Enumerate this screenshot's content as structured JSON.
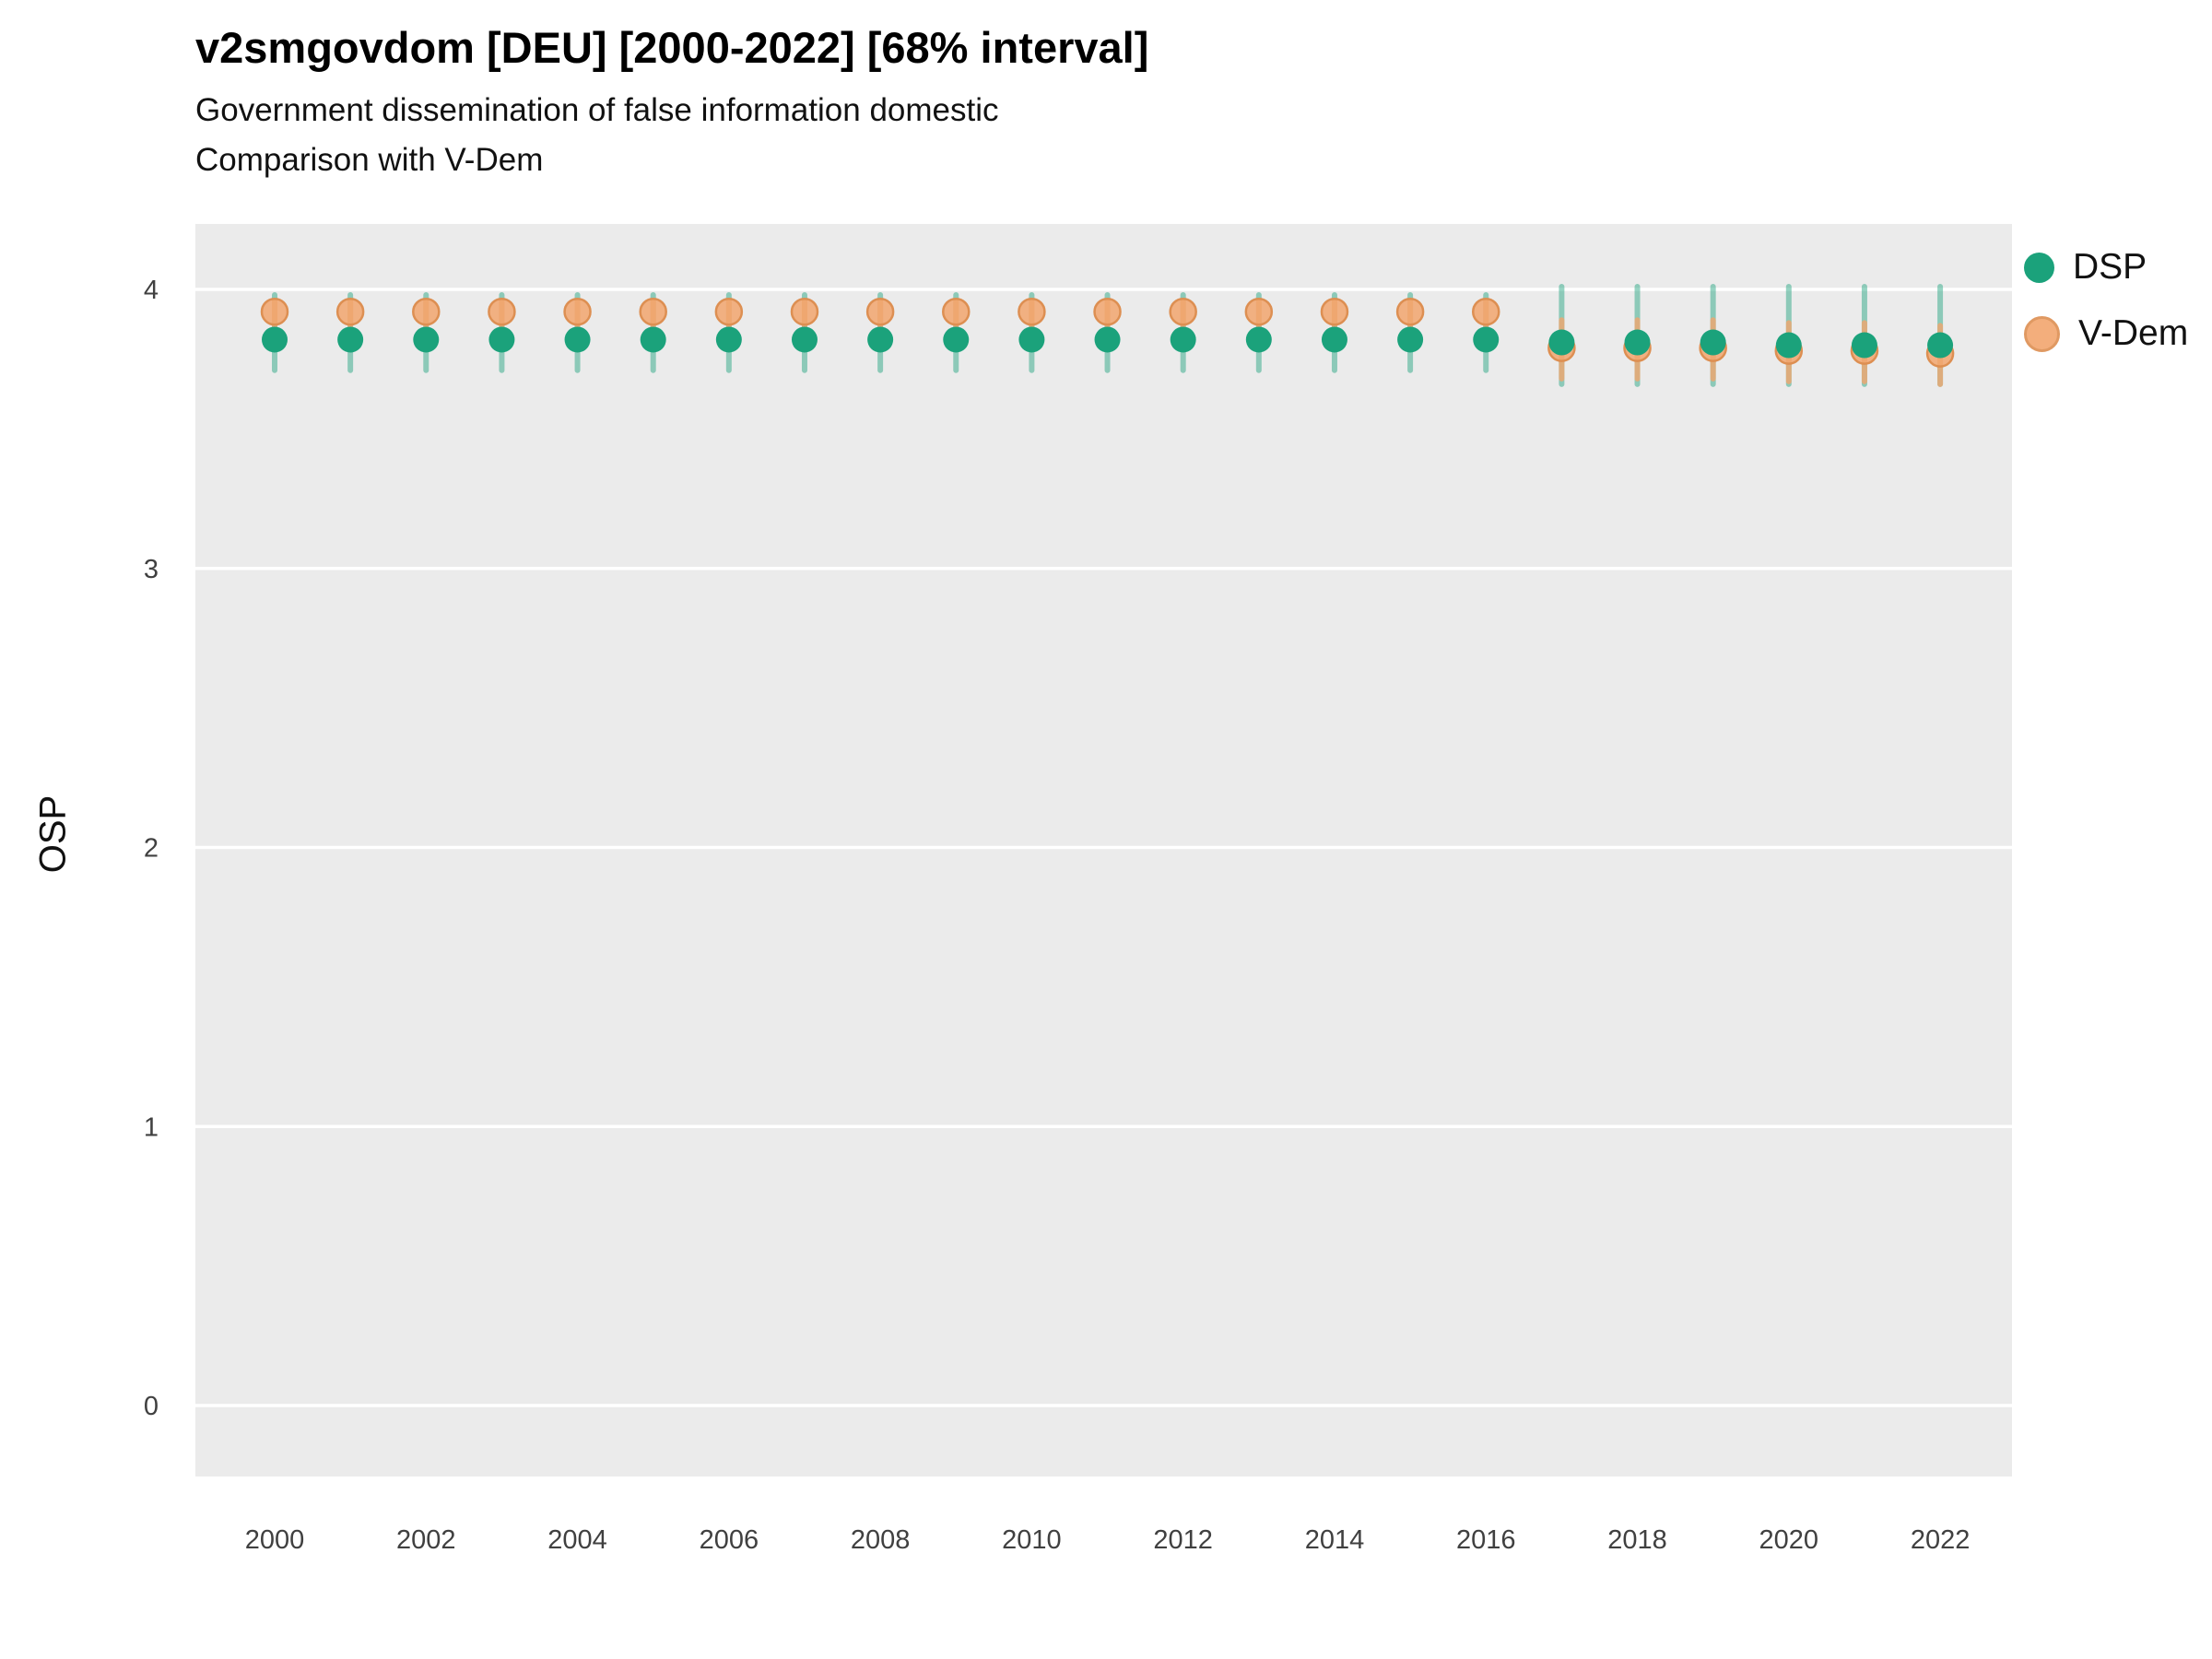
{
  "title": "v2smgovdom [DEU] [2000-2022] [68% interval]",
  "subtitle1": "Government dissemination of false information domestic",
  "subtitle2": "Comparison with V-Dem",
  "ylabel": "OSP",
  "legend": [
    {
      "label": "DSP",
      "color": "#1ba27b"
    },
    {
      "label": "V-Dem",
      "color": "#f2a66e",
      "stroke": "#dd8f52"
    }
  ],
  "chart_data": {
    "type": "scatter",
    "title": "v2smgovdom [DEU] [2000-2022] [68% interval]",
    "subtitle": "Government dissemination of false information domestic; Comparison with V-Dem",
    "xlabel": "",
    "ylabel": "OSP",
    "interval": "68%",
    "ylim": [
      -0.25,
      4.25
    ],
    "y_ticks": [
      0,
      1,
      2,
      3,
      4
    ],
    "x_ticks": [
      2000,
      2002,
      2004,
      2006,
      2008,
      2010,
      2012,
      2014,
      2016,
      2018,
      2020,
      2022
    ],
    "grid": true,
    "legend_position": "right",
    "panel_bg": "#EBEBEB",
    "grid_color": "#FFFFFF",
    "years": [
      2000,
      2001,
      2002,
      2003,
      2004,
      2005,
      2006,
      2007,
      2008,
      2009,
      2010,
      2011,
      2012,
      2013,
      2014,
      2015,
      2016,
      2017,
      2018,
      2019,
      2020,
      2021,
      2022
    ],
    "series": [
      {
        "name": "DSP",
        "color": "#1ba27b",
        "values": [
          3.82,
          3.82,
          3.82,
          3.82,
          3.82,
          3.82,
          3.82,
          3.82,
          3.82,
          3.82,
          3.82,
          3.82,
          3.82,
          3.82,
          3.82,
          3.82,
          3.82,
          3.81,
          3.81,
          3.81,
          3.8,
          3.8,
          3.8
        ],
        "lo": [
          3.71,
          3.71,
          3.71,
          3.71,
          3.71,
          3.71,
          3.71,
          3.71,
          3.71,
          3.71,
          3.71,
          3.71,
          3.71,
          3.71,
          3.71,
          3.71,
          3.71,
          3.66,
          3.66,
          3.66,
          3.66,
          3.66,
          3.66
        ],
        "hi": [
          3.98,
          3.98,
          3.98,
          3.98,
          3.98,
          3.98,
          3.98,
          3.98,
          3.98,
          3.98,
          3.98,
          3.98,
          3.98,
          3.98,
          3.98,
          3.98,
          3.98,
          4.01,
          4.01,
          4.01,
          4.01,
          4.01,
          4.01
        ]
      },
      {
        "name": "V-Dem",
        "color": "#f2a66e",
        "stroke": "#dd8f52",
        "values": [
          3.92,
          3.92,
          3.92,
          3.92,
          3.92,
          3.92,
          3.92,
          3.92,
          3.92,
          3.92,
          3.92,
          3.92,
          3.92,
          3.92,
          3.92,
          3.92,
          3.92,
          3.79,
          3.79,
          3.79,
          3.78,
          3.78,
          3.77
        ],
        "lo": [
          3.87,
          3.87,
          3.87,
          3.87,
          3.87,
          3.87,
          3.87,
          3.87,
          3.87,
          3.87,
          3.87,
          3.87,
          3.87,
          3.87,
          3.87,
          3.87,
          3.87,
          3.68,
          3.68,
          3.68,
          3.67,
          3.67,
          3.66
        ],
        "hi": [
          3.96,
          3.96,
          3.96,
          3.96,
          3.96,
          3.96,
          3.96,
          3.96,
          3.96,
          3.96,
          3.96,
          3.96,
          3.96,
          3.96,
          3.96,
          3.96,
          3.96,
          3.89,
          3.89,
          3.89,
          3.88,
          3.88,
          3.87
        ]
      }
    ]
  }
}
